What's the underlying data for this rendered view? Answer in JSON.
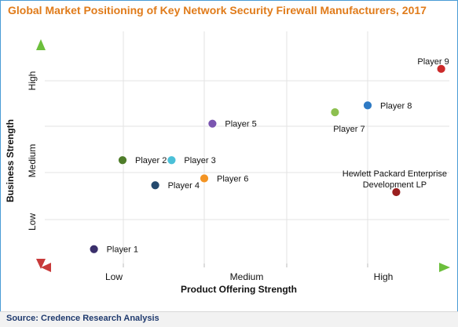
{
  "title": "Global Market Positioning of Key Network Security Firewall Manufacturers, 2017",
  "source": "Source: Credence Research Analysis",
  "chart_data": {
    "type": "scatter",
    "xlabel": "Product Offering Strength",
    "ylabel": "Business Strength",
    "x_categories": [
      "Low",
      "Medium",
      "High"
    ],
    "y_categories": [
      "Low",
      "Medium",
      "High"
    ],
    "xlim": [
      0,
      10
    ],
    "ylim": [
      0,
      10
    ],
    "grid": true,
    "points": [
      {
        "label": "Player 1",
        "x": 1.3,
        "y": 0.8,
        "color": "#3a2f6b"
      },
      {
        "label": "Player 2",
        "x": 2.0,
        "y": 4.7,
        "color": "#4f7d2a"
      },
      {
        "label": "Player 3",
        "x": 3.2,
        "y": 4.7,
        "color": "#4bc0d8"
      },
      {
        "label": "Player 4",
        "x": 2.8,
        "y": 3.6,
        "color": "#244a6e"
      },
      {
        "label": "Player 5",
        "x": 4.2,
        "y": 6.3,
        "color": "#7a55b0"
      },
      {
        "label": "Player 6",
        "x": 4.0,
        "y": 3.9,
        "color": "#f39424"
      },
      {
        "label": "Player 7",
        "x": 7.2,
        "y": 6.8,
        "color": "#8dc050"
      },
      {
        "label": "Player 8",
        "x": 8.0,
        "y": 7.1,
        "color": "#2e7ac4"
      },
      {
        "label": "Player 9",
        "x": 9.8,
        "y": 8.7,
        "color": "#cc2a2a"
      },
      {
        "label": "Hewlett Packard Enterprise Development LP",
        "x": 8.7,
        "y": 3.3,
        "color": "#9a1f1f"
      }
    ]
  }
}
